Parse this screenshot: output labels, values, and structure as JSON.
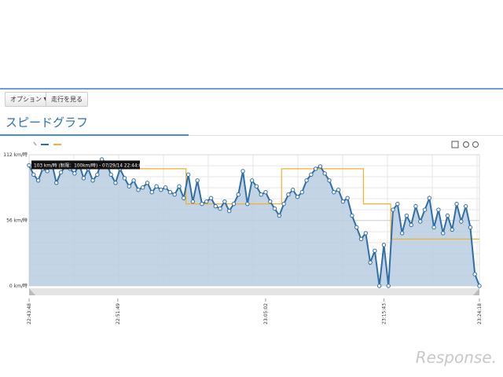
{
  "ui": {
    "buttons": [
      "オプション ▼",
      "走行を見る"
    ],
    "title": "スピードグラフ",
    "tooltip": "103 km/時 (制限：100km/時) - 07/29/14 22:44:00",
    "watermark": "Response."
  },
  "chart_data": {
    "type": "line",
    "xlim": [
      0,
      99
    ],
    "xticks": [
      {
        "value": 0,
        "label": "22:43:48"
      },
      {
        "value": 19.5,
        "label": "22:51:49"
      },
      {
        "value": 52,
        "label": "23:05:02"
      },
      {
        "value": 78,
        "label": "23:15:43"
      },
      {
        "value": 99,
        "label": "23:24:18"
      }
    ],
    "ylim": [
      0,
      112
    ],
    "yticks": [
      {
        "value": 0,
        "label": "0 km/時"
      },
      {
        "value": 56,
        "label": "56 km/時"
      },
      {
        "value": 112,
        "label": "112 km/時"
      }
    ],
    "series": [
      {
        "color": "#2f6ea6",
        "values": [
          103,
          95,
          90,
          100,
          98,
          105,
          88,
          97,
          102,
          100,
          96,
          104,
          92,
          100,
          90,
          95,
          108,
          105,
          95,
          88,
          100,
          92,
          85,
          90,
          82,
          84,
          88,
          80,
          85,
          82,
          84,
          80,
          78,
          85,
          75,
          95,
          72,
          90,
          70,
          72,
          75,
          68,
          66,
          72,
          64,
          70,
          78,
          98,
          70,
          90,
          85,
          78,
          80,
          72,
          66,
          60,
          70,
          78,
          82,
          76,
          80,
          90,
          95,
          100,
          102,
          96,
          90,
          80,
          82,
          72,
          75,
          60,
          50,
          40,
          45,
          20,
          30,
          0,
          35,
          0,
          65,
          70,
          45,
          60,
          52,
          68,
          55,
          65,
          75,
          50,
          65,
          45,
          60,
          48,
          70,
          55,
          68,
          50,
          10,
          0
        ]
      },
      {
        "color": "#f0b030",
        "values": [
          100,
          100,
          100,
          100,
          100,
          100,
          100,
          100,
          100,
          100,
          100,
          100,
          100,
          100,
          100,
          100,
          100,
          100,
          100,
          100,
          100,
          100,
          100,
          100,
          100,
          100,
          100,
          100,
          100,
          100,
          100,
          100,
          100,
          100,
          100,
          70,
          70,
          70,
          70,
          70,
          70,
          70,
          70,
          70,
          70,
          70,
          70,
          70,
          70,
          70,
          70,
          70,
          70,
          70,
          70,
          70,
          100,
          100,
          100,
          100,
          100,
          100,
          100,
          100,
          100,
          100,
          100,
          100,
          100,
          100,
          100,
          100,
          100,
          100,
          70,
          70,
          70,
          70,
          70,
          70,
          40,
          40,
          40,
          40,
          40,
          40,
          40,
          40,
          40,
          40,
          40,
          40,
          40,
          40,
          40,
          40,
          40,
          40,
          40,
          40
        ]
      }
    ]
  }
}
